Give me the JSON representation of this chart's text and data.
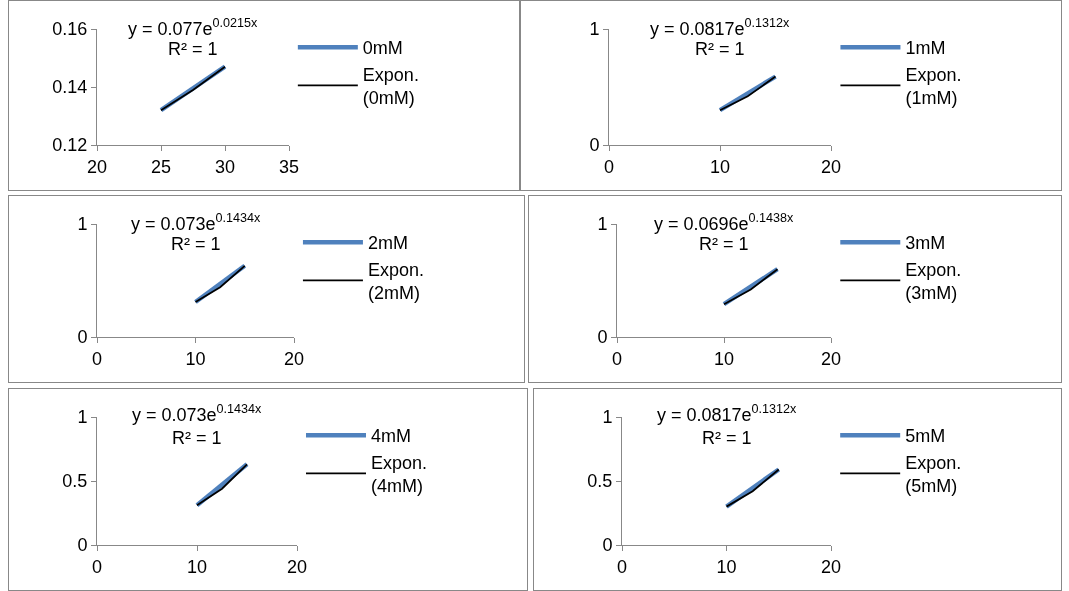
{
  "chart_data": [
    {
      "type": "line",
      "xlim": [
        20,
        35
      ],
      "xticks": [
        20,
        25,
        30,
        35
      ],
      "ylim": [
        0.12,
        0.16
      ],
      "yticks": [
        0.12,
        0.14,
        0.16
      ],
      "legend": "right",
      "grid": false,
      "annotations": [
        "y = 0.077e$^{0.0215x}$",
        "R² = 1"
      ],
      "series": [
        {
          "name": "0mM",
          "color": "#4f81bd",
          "x": [
            25,
            30
          ],
          "values": [
            0.132,
            0.147
          ]
        },
        {
          "name": "Expon. (0mM)",
          "color": "#000000",
          "x": [
            25,
            27.5,
            30
          ],
          "values": [
            0.132,
            0.139,
            0.147
          ]
        }
      ]
    },
    {
      "type": "line",
      "xlim": [
        0,
        20
      ],
      "xticks": [
        0,
        10,
        20
      ],
      "ylim": [
        0,
        1
      ],
      "yticks": [
        0,
        1
      ],
      "legend": "right",
      "grid": false,
      "annotations": [
        "y = 0.0817e$^{0.1312x}$",
        "R² = 1"
      ],
      "series": [
        {
          "name": "1mM",
          "color": "#4f81bd",
          "x": [
            10,
            15
          ],
          "values": [
            0.3,
            0.59
          ]
        },
        {
          "name": "Expon. (1mM)",
          "color": "#000000",
          "x": [
            10,
            12.5,
            15
          ],
          "values": [
            0.3,
            0.42,
            0.59
          ]
        }
      ]
    },
    {
      "type": "line",
      "xlim": [
        0,
        20
      ],
      "xticks": [
        0,
        10,
        20
      ],
      "ylim": [
        0,
        1
      ],
      "yticks": [
        0,
        1
      ],
      "legend": "right",
      "grid": false,
      "annotations": [
        "y = 0.073e$^{0.1434x}$",
        "R² = 1"
      ],
      "series": [
        {
          "name": "2mM",
          "color": "#4f81bd",
          "x": [
            10,
            15
          ],
          "values": [
            0.31,
            0.63
          ]
        },
        {
          "name": "Expon. (2mM)",
          "color": "#000000",
          "x": [
            10,
            12.5,
            15
          ],
          "values": [
            0.31,
            0.44,
            0.63
          ]
        }
      ]
    },
    {
      "type": "line",
      "xlim": [
        0,
        20
      ],
      "xticks": [
        0,
        10,
        20
      ],
      "ylim": [
        0,
        1
      ],
      "yticks": [
        0,
        1
      ],
      "legend": "right",
      "grid": false,
      "annotations": [
        "y = 0.0696e$^{0.1438x}$",
        "R² = 1"
      ],
      "series": [
        {
          "name": "3mM",
          "color": "#4f81bd",
          "x": [
            10,
            15
          ],
          "values": [
            0.29,
            0.6
          ]
        },
        {
          "name": "Expon. (3mM)",
          "color": "#000000",
          "x": [
            10,
            12.5,
            15
          ],
          "values": [
            0.29,
            0.42,
            0.6
          ]
        }
      ]
    },
    {
      "type": "line",
      "xlim": [
        0,
        20
      ],
      "xticks": [
        0,
        10,
        20
      ],
      "ylim": [
        0,
        1
      ],
      "yticks": [
        0,
        0.5,
        1
      ],
      "legend": "right",
      "grid": false,
      "annotations": [
        "y = 0.073e$^{0.1434x}$",
        "R² = 1"
      ],
      "series": [
        {
          "name": "4mM",
          "color": "#4f81bd",
          "x": [
            10,
            15
          ],
          "values": [
            0.31,
            0.63
          ]
        },
        {
          "name": "Expon. (4mM)",
          "color": "#000000",
          "x": [
            10,
            12.5,
            15
          ],
          "values": [
            0.31,
            0.44,
            0.63
          ]
        }
      ]
    },
    {
      "type": "line",
      "xlim": [
        0,
        20
      ],
      "xticks": [
        0,
        10,
        20
      ],
      "ylim": [
        0,
        1
      ],
      "yticks": [
        0,
        0.5,
        1
      ],
      "legend": "right",
      "grid": false,
      "annotations": [
        "y = 0.0817e$^{0.1312x}$",
        "R² = 1"
      ],
      "series": [
        {
          "name": "5mM",
          "color": "#4f81bd",
          "x": [
            10,
            15
          ],
          "values": [
            0.3,
            0.59
          ]
        },
        {
          "name": "Expon. (5mM)",
          "color": "#000000",
          "x": [
            10,
            12.5,
            15
          ],
          "values": [
            0.3,
            0.42,
            0.59
          ]
        }
      ]
    }
  ]
}
